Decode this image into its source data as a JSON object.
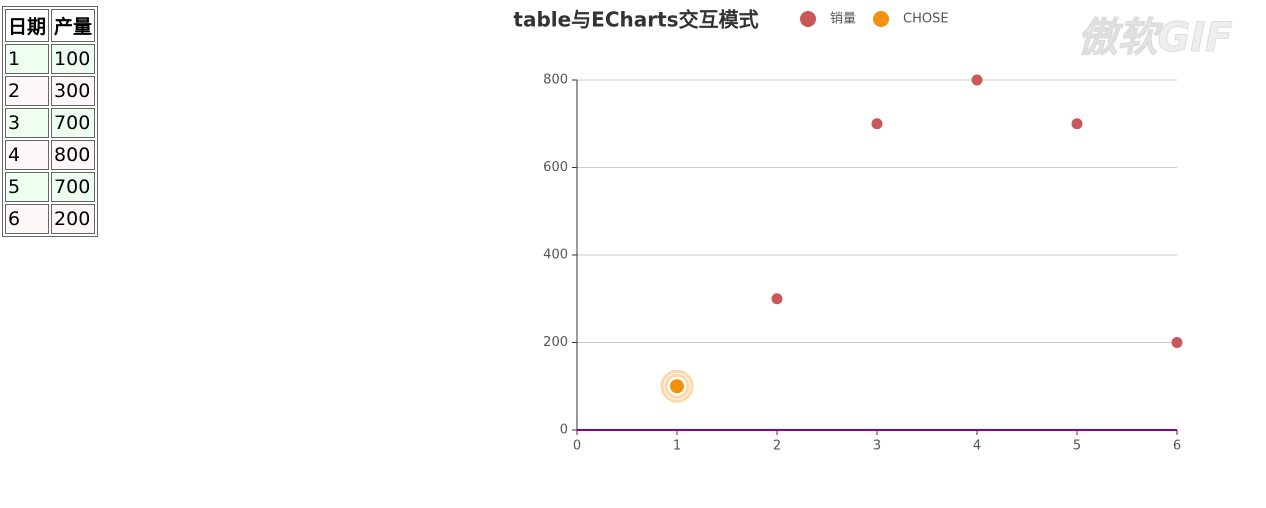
{
  "table": {
    "header": [
      "日期",
      "产量"
    ],
    "rows": [
      [
        1,
        100
      ],
      [
        2,
        300
      ],
      [
        3,
        700
      ],
      [
        4,
        800
      ],
      [
        5,
        700
      ],
      [
        6,
        200
      ]
    ]
  },
  "watermark": "傲软GIF",
  "chart_data": {
    "type": "scatter",
    "title": "table与ECharts交互模式",
    "series": [
      {
        "name": "销量",
        "color": "#c9585a",
        "x": [
          1,
          2,
          3,
          4,
          5,
          6
        ],
        "values": [
          100,
          300,
          700,
          800,
          700,
          200
        ]
      },
      {
        "name": "CHOSE",
        "color": "#f5900a",
        "x": [
          1
        ],
        "values": [
          100
        ]
      }
    ],
    "xlim": [
      0,
      6
    ],
    "xticks": [
      0,
      1,
      2,
      3,
      4,
      5,
      6
    ],
    "ylim": [
      0,
      800
    ],
    "yticks": [
      0,
      200,
      400,
      600,
      800
    ],
    "grid": true
  }
}
